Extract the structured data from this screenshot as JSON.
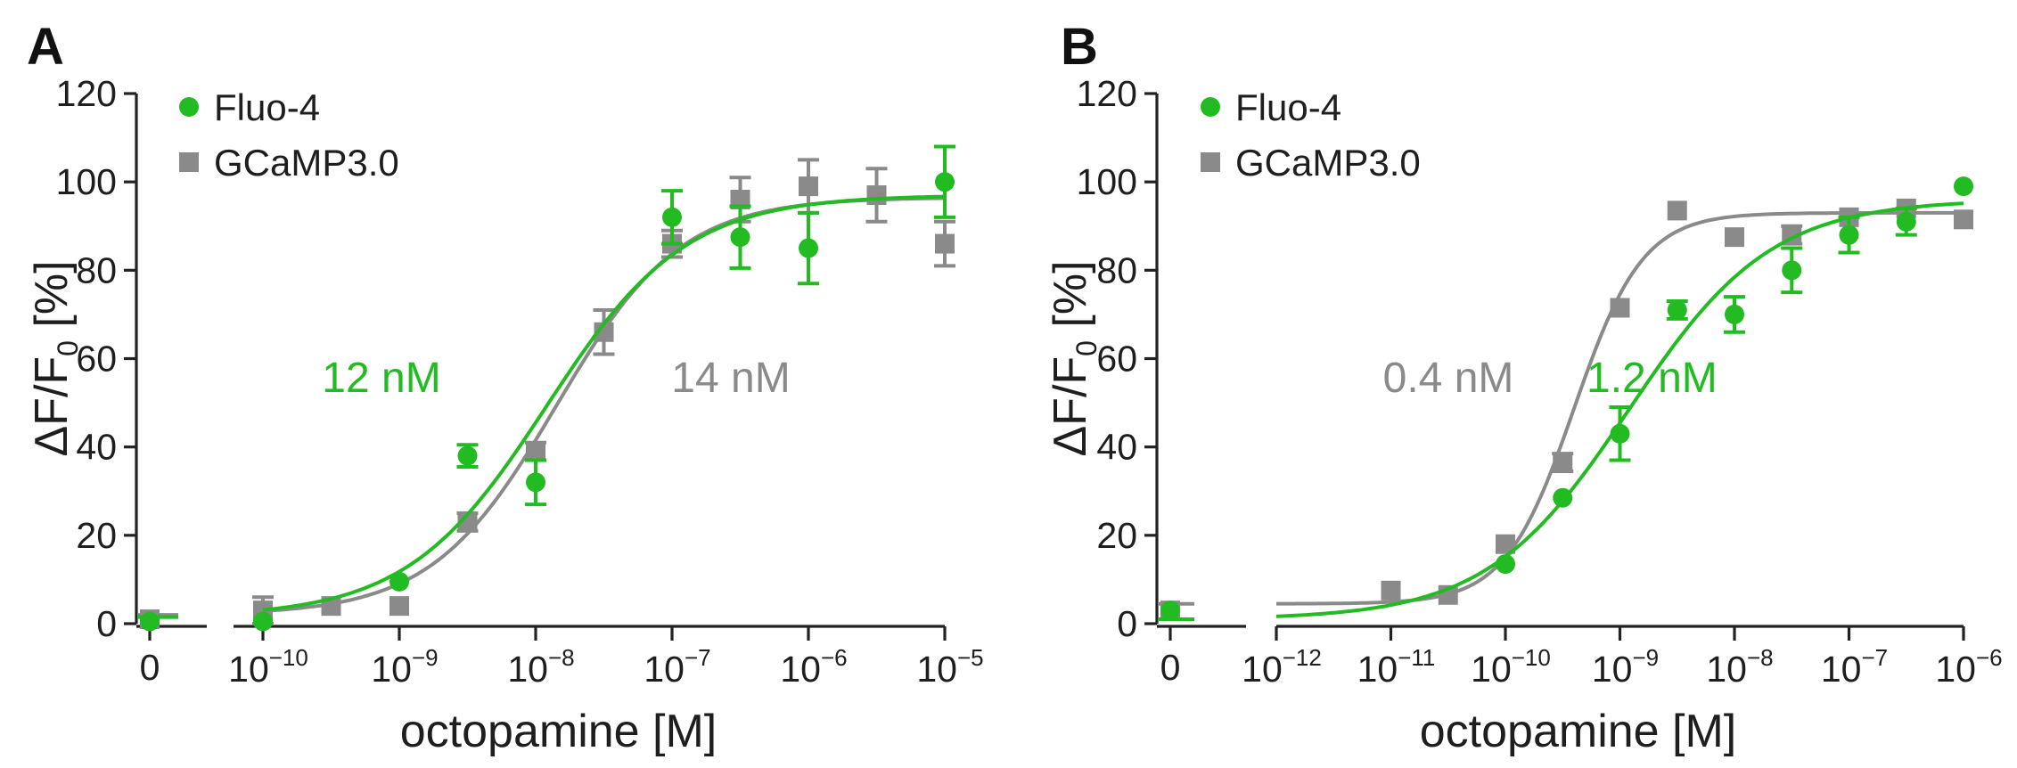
{
  "colors": {
    "fluo4": "#22bb22",
    "gcamp": "#8a8a8a"
  },
  "chart_data": [
    {
      "panel": "A",
      "type": "scatter",
      "xlabel": "octopamine [M]",
      "ylabel": "ΔF/F0 [%]",
      "ylabel_main": "ΔF/F",
      "ylabel_sub": "0",
      "ylabel_unit": " [%]",
      "ylim": [
        0,
        120
      ],
      "yticks": [
        "0",
        "20",
        "40",
        "60",
        "80",
        "100",
        "120"
      ],
      "zero_label": "0",
      "xlog_range": [
        -10,
        -5
      ],
      "xtick_exps": [
        "-10",
        "-9",
        "-8",
        "-7",
        "-6",
        "-5"
      ],
      "legend": [
        "Fluo-4",
        "GCaMP3.0"
      ],
      "series": [
        {
          "name": "Fluo-4",
          "color_key": "fluo4",
          "marker": "circle",
          "zero": {
            "y": 0.5,
            "err": 0
          },
          "points": [
            {
              "x": -10,
              "y": 0.5,
              "err": 0
            },
            {
              "x": -9,
              "y": 9.5,
              "err": 0
            },
            {
              "x": -8.5,
              "y": 38,
              "err": 2.5
            },
            {
              "x": -8,
              "y": 32,
              "err": 5
            },
            {
              "x": -7,
              "y": 92,
              "err": 6
            },
            {
              "x": -6.5,
              "y": 87.5,
              "err": 7
            },
            {
              "x": -6,
              "y": 85,
              "err": 8
            },
            {
              "x": -5,
              "y": 100,
              "err": 8
            }
          ],
          "fit": {
            "bottom": 1.5,
            "top": 97,
            "logEC50": -7.92,
            "hill": 0.85
          },
          "ec50_label": "12 nM"
        },
        {
          "name": "GCaMP3.0",
          "color_key": "gcamp",
          "marker": "square",
          "zero": {
            "y": 1,
            "err": 0
          },
          "points": [
            {
              "x": -10,
              "y": 3,
              "err": 3
            },
            {
              "x": -9.5,
              "y": 4,
              "err": 0
            },
            {
              "x": -9,
              "y": 4,
              "err": 0
            },
            {
              "x": -8.5,
              "y": 23,
              "err": 2
            },
            {
              "x": -8,
              "y": 39,
              "err": 2
            },
            {
              "x": -7.5,
              "y": 66,
              "err": 5
            },
            {
              "x": -7,
              "y": 86,
              "err": 3
            },
            {
              "x": -6.5,
              "y": 96,
              "err": 5
            },
            {
              "x": -6,
              "y": 99,
              "err": 6
            },
            {
              "x": -5.5,
              "y": 97,
              "err": 6
            },
            {
              "x": -5,
              "y": 86,
              "err": 5
            }
          ],
          "fit": {
            "bottom": 2,
            "top": 96.5,
            "logEC50": -7.85,
            "hill": 0.95
          },
          "ec50_label": "14 nM"
        }
      ]
    },
    {
      "panel": "B",
      "type": "scatter",
      "xlabel": "octopamine [M]",
      "ylabel": "ΔF/F0 [%]",
      "ylabel_main": "ΔF/F",
      "ylabel_sub": "0",
      "ylabel_unit": " [%]",
      "ylim": [
        0,
        120
      ],
      "yticks": [
        "0",
        "20",
        "40",
        "60",
        "80",
        "100",
        "120"
      ],
      "zero_label": "0",
      "xlog_range": [
        -12,
        -6
      ],
      "xtick_exps": [
        "-12",
        "-11",
        "-10",
        "-9",
        "-8",
        "-7",
        "-6"
      ],
      "legend": [
        "Fluo-4",
        "GCaMP3.0"
      ],
      "series": [
        {
          "name": "Fluo-4",
          "color_key": "fluo4",
          "marker": "circle",
          "zero": {
            "y": 3,
            "err": 0
          },
          "points": [
            {
              "x": -10,
              "y": 13.5,
              "err": 0
            },
            {
              "x": -9.5,
              "y": 28.5,
              "err": 0
            },
            {
              "x": -9,
              "y": 43,
              "err": 6
            },
            {
              "x": -8.5,
              "y": 71,
              "err": 2
            },
            {
              "x": -8,
              "y": 70,
              "err": 4
            },
            {
              "x": -7.5,
              "y": 80,
              "err": 5
            },
            {
              "x": -7,
              "y": 88,
              "err": 4
            },
            {
              "x": -6.5,
              "y": 91,
              "err": 3
            },
            {
              "x": -6,
              "y": 99,
              "err": 0
            }
          ],
          "fit": {
            "bottom": 1,
            "top": 96,
            "logEC50": -8.92,
            "hill": 0.7
          },
          "ec50_label": "1.2 nM"
        },
        {
          "name": "GCaMP3.0",
          "color_key": "gcamp",
          "marker": "square",
          "zero": {
            "y": 3,
            "err": 0
          },
          "points": [
            {
              "x": -11,
              "y": 7.5,
              "err": 0
            },
            {
              "x": -10.5,
              "y": 6.5,
              "err": 0
            },
            {
              "x": -10,
              "y": 18,
              "err": 0
            },
            {
              "x": -9.5,
              "y": 36.5,
              "err": 2
            },
            {
              "x": -9,
              "y": 71.5,
              "err": 0
            },
            {
              "x": -8.5,
              "y": 93.5,
              "err": 0
            },
            {
              "x": -8,
              "y": 87.5,
              "err": 0
            },
            {
              "x": -7.5,
              "y": 88,
              "err": 2
            },
            {
              "x": -7,
              "y": 92,
              "err": 0
            },
            {
              "x": -6.5,
              "y": 94,
              "err": 0
            },
            {
              "x": -6,
              "y": 91.5,
              "err": 0
            }
          ],
          "fit": {
            "bottom": 4.5,
            "top": 93,
            "logEC50": -9.4,
            "hill": 1.45
          },
          "ec50_label": "0.4 nM"
        }
      ]
    }
  ]
}
